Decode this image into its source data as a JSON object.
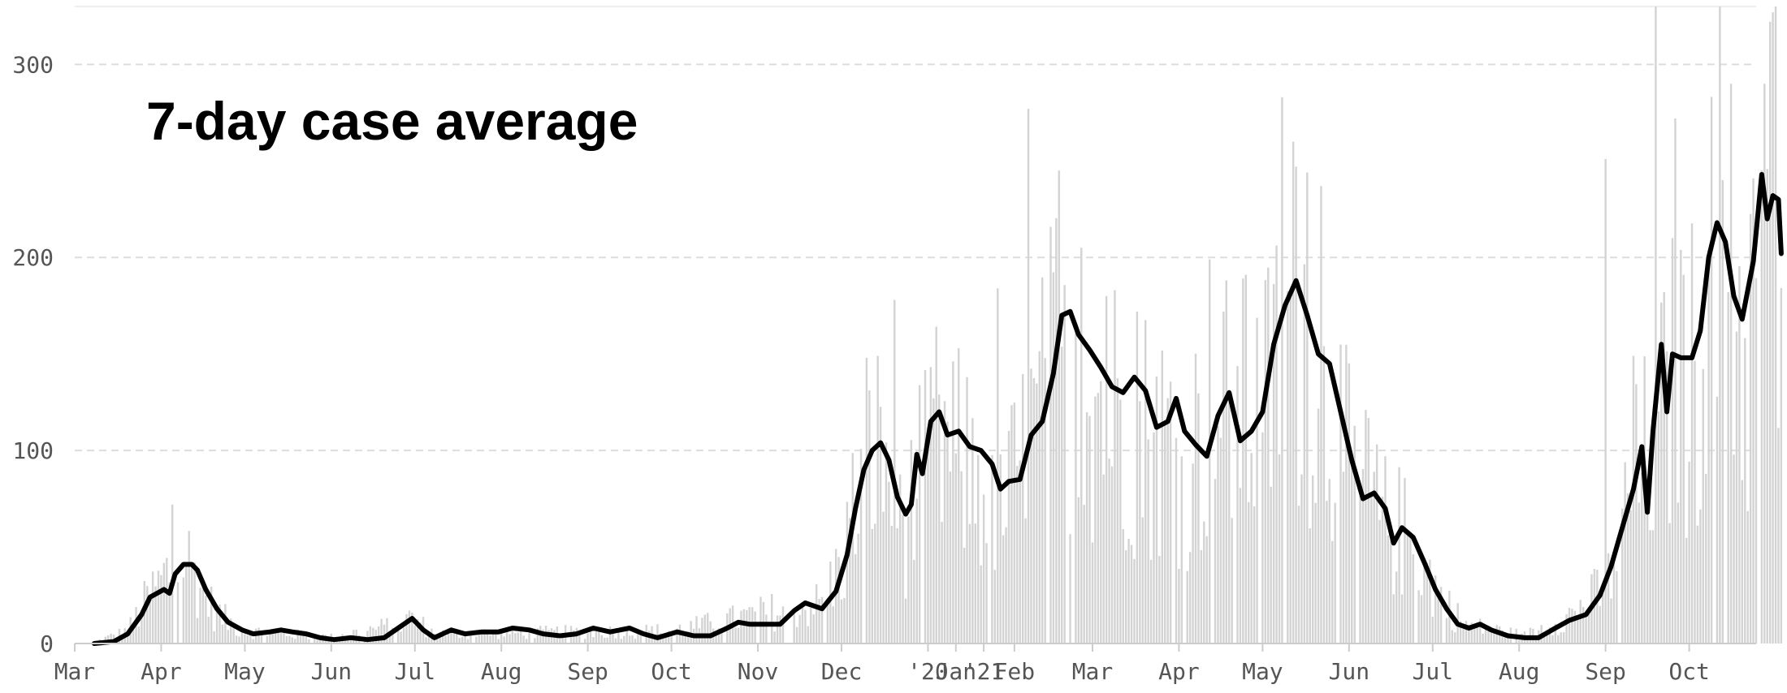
{
  "chart_data": {
    "type": "bar",
    "title": "7-day case average",
    "grid": true,
    "ylim": [
      0,
      330
    ],
    "y_ticks": [
      0,
      100,
      200,
      300
    ],
    "y_tick_labels": [
      "0",
      "100",
      "200",
      "300"
    ],
    "x_range": [
      "2020-03-01",
      "2021-10-25"
    ],
    "x_tick_labels": [
      {
        "date": "2020-03-01",
        "label": "Mar"
      },
      {
        "date": "2020-04-01",
        "label": "Apr"
      },
      {
        "date": "2020-05-01",
        "label": "May"
      },
      {
        "date": "2020-06-01",
        "label": "Jun"
      },
      {
        "date": "2020-07-01",
        "label": "Jul"
      },
      {
        "date": "2020-08-01",
        "label": "Aug"
      },
      {
        "date": "2020-09-01",
        "label": "Sep"
      },
      {
        "date": "2020-10-01",
        "label": "Oct"
      },
      {
        "date": "2020-11-01",
        "label": "Nov"
      },
      {
        "date": "2020-12-01",
        "label": "Dec"
      },
      {
        "date": "2021-01-01",
        "label": "'20"
      },
      {
        "date": "2021-01-11",
        "label": "Jan"
      },
      {
        "date": "2021-01-21",
        "label": "'21"
      },
      {
        "date": "2021-02-01",
        "label": "Feb"
      },
      {
        "date": "2021-03-01",
        "label": "Mar"
      },
      {
        "date": "2021-04-01",
        "label": "Apr"
      },
      {
        "date": "2021-05-01",
        "label": "May"
      },
      {
        "date": "2021-06-01",
        "label": "Jun"
      },
      {
        "date": "2021-07-01",
        "label": "Jul"
      },
      {
        "date": "2021-08-01",
        "label": "Aug"
      },
      {
        "date": "2021-09-01",
        "label": "Sep"
      },
      {
        "date": "2021-10-01",
        "label": "Oct"
      }
    ],
    "colors": {
      "bars": "#d3d3d3",
      "line": "#000000",
      "grid": "#dddddd",
      "axis": "#cccccc",
      "tick_text": "#555555"
    },
    "series": [
      {
        "type": "line",
        "points": [
          [
            "2020-03-08",
            0
          ],
          [
            "2020-03-15",
            1
          ],
          [
            "2020-03-20",
            5
          ],
          [
            "2020-03-25",
            15
          ],
          [
            "2020-03-28",
            24
          ],
          [
            "2020-04-02",
            28
          ],
          [
            "2020-04-04",
            26
          ],
          [
            "2020-04-06",
            36
          ],
          [
            "2020-04-09",
            41
          ],
          [
            "2020-04-12",
            41
          ],
          [
            "2020-04-14",
            38
          ],
          [
            "2020-04-17",
            28
          ],
          [
            "2020-04-21",
            18
          ],
          [
            "2020-04-25",
            11
          ],
          [
            "2020-04-30",
            7
          ],
          [
            "2020-05-04",
            5
          ],
          [
            "2020-05-10",
            6
          ],
          [
            "2020-05-14",
            7
          ],
          [
            "2020-05-18",
            6
          ],
          [
            "2020-05-23",
            5
          ],
          [
            "2020-05-28",
            3
          ],
          [
            "2020-06-02",
            2
          ],
          [
            "2020-06-08",
            3
          ],
          [
            "2020-06-14",
            2
          ],
          [
            "2020-06-20",
            3
          ],
          [
            "2020-06-25",
            8
          ],
          [
            "2020-06-30",
            13
          ],
          [
            "2020-07-04",
            7
          ],
          [
            "2020-07-08",
            3
          ],
          [
            "2020-07-14",
            7
          ],
          [
            "2020-07-19",
            5
          ],
          [
            "2020-07-25",
            6
          ],
          [
            "2020-07-31",
            6
          ],
          [
            "2020-08-05",
            8
          ],
          [
            "2020-08-11",
            7
          ],
          [
            "2020-08-16",
            5
          ],
          [
            "2020-08-22",
            4
          ],
          [
            "2020-08-28",
            5
          ],
          [
            "2020-09-03",
            8
          ],
          [
            "2020-09-09",
            6
          ],
          [
            "2020-09-16",
            8
          ],
          [
            "2020-09-21",
            5
          ],
          [
            "2020-09-26",
            3
          ],
          [
            "2020-10-03",
            6
          ],
          [
            "2020-10-09",
            4
          ],
          [
            "2020-10-15",
            4
          ],
          [
            "2020-10-21",
            8
          ],
          [
            "2020-10-25",
            11
          ],
          [
            "2020-10-29",
            10
          ],
          [
            "2020-11-03",
            10
          ],
          [
            "2020-11-09",
            10
          ],
          [
            "2020-11-14",
            17
          ],
          [
            "2020-11-18",
            21
          ],
          [
            "2020-11-24",
            18
          ],
          [
            "2020-11-29",
            27
          ],
          [
            "2020-12-03",
            46
          ],
          [
            "2020-12-06",
            70
          ],
          [
            "2020-12-09",
            90
          ],
          [
            "2020-12-12",
            100
          ],
          [
            "2020-12-15",
            104
          ],
          [
            "2020-12-18",
            95
          ],
          [
            "2020-12-21",
            76
          ],
          [
            "2020-12-24",
            67
          ],
          [
            "2020-12-26",
            72
          ],
          [
            "2020-12-28",
            98
          ],
          [
            "2020-12-30",
            88
          ],
          [
            "2021-01-02",
            115
          ],
          [
            "2021-01-05",
            120
          ],
          [
            "2021-01-08",
            108
          ],
          [
            "2021-01-12",
            110
          ],
          [
            "2021-01-16",
            102
          ],
          [
            "2021-01-20",
            100
          ],
          [
            "2021-01-24",
            93
          ],
          [
            "2021-01-27",
            80
          ],
          [
            "2021-01-30",
            84
          ],
          [
            "2021-02-03",
            85
          ],
          [
            "2021-02-07",
            108
          ],
          [
            "2021-02-11",
            115
          ],
          [
            "2021-02-15",
            140
          ],
          [
            "2021-02-18",
            170
          ],
          [
            "2021-02-21",
            172
          ],
          [
            "2021-02-24",
            160
          ],
          [
            "2021-02-28",
            152
          ],
          [
            "2021-03-04",
            143
          ],
          [
            "2021-03-08",
            133
          ],
          [
            "2021-03-12",
            130
          ],
          [
            "2021-03-16",
            138
          ],
          [
            "2021-03-20",
            131
          ],
          [
            "2021-03-24",
            112
          ],
          [
            "2021-03-28",
            115
          ],
          [
            "2021-03-31",
            127
          ],
          [
            "2021-04-03",
            110
          ],
          [
            "2021-04-07",
            103
          ],
          [
            "2021-04-11",
            97
          ],
          [
            "2021-04-15",
            118
          ],
          [
            "2021-04-19",
            130
          ],
          [
            "2021-04-23",
            105
          ],
          [
            "2021-04-27",
            110
          ],
          [
            "2021-05-01",
            120
          ],
          [
            "2021-05-05",
            155
          ],
          [
            "2021-05-09",
            175
          ],
          [
            "2021-05-13",
            188
          ],
          [
            "2021-05-17",
            170
          ],
          [
            "2021-05-21",
            150
          ],
          [
            "2021-05-25",
            145
          ],
          [
            "2021-05-29",
            120
          ],
          [
            "2021-06-02",
            95
          ],
          [
            "2021-06-06",
            75
          ],
          [
            "2021-06-10",
            78
          ],
          [
            "2021-06-14",
            70
          ],
          [
            "2021-06-17",
            52
          ],
          [
            "2021-06-20",
            60
          ],
          [
            "2021-06-24",
            55
          ],
          [
            "2021-06-28",
            42
          ],
          [
            "2021-07-02",
            28
          ],
          [
            "2021-07-06",
            18
          ],
          [
            "2021-07-10",
            10
          ],
          [
            "2021-07-14",
            8
          ],
          [
            "2021-07-18",
            10
          ],
          [
            "2021-07-22",
            7
          ],
          [
            "2021-07-28",
            4
          ],
          [
            "2021-08-03",
            3
          ],
          [
            "2021-08-08",
            3
          ],
          [
            "2021-08-14",
            8
          ],
          [
            "2021-08-19",
            12
          ],
          [
            "2021-08-25",
            15
          ],
          [
            "2021-08-30",
            25
          ],
          [
            "2021-09-03",
            40
          ],
          [
            "2021-09-07",
            60
          ],
          [
            "2021-09-11",
            80
          ],
          [
            "2021-09-14",
            102
          ],
          [
            "2021-09-16",
            68
          ],
          [
            "2021-09-18",
            110
          ],
          [
            "2021-09-21",
            155
          ],
          [
            "2021-09-23",
            120
          ],
          [
            "2021-09-25",
            150
          ],
          [
            "2021-09-28",
            148
          ],
          [
            "2021-10-02",
            148
          ],
          [
            "2021-10-05",
            162
          ],
          [
            "2021-10-08",
            200
          ],
          [
            "2021-10-11",
            218
          ],
          [
            "2021-10-14",
            208
          ],
          [
            "2021-10-17",
            180
          ],
          [
            "2021-10-20",
            168
          ],
          [
            "2021-10-24",
            198
          ],
          [
            "2021-10-27",
            243
          ],
          [
            "2021-10-29",
            220
          ],
          [
            "2021-10-31",
            232
          ],
          [
            "2021-11-02",
            230
          ],
          [
            "2021-11-03",
            202
          ]
        ]
      },
      {
        "type": "bar",
        "envelope": [
          [
            "2020-03-08",
            1
          ],
          [
            "2020-03-20",
            8
          ],
          [
            "2020-03-28",
            30
          ],
          [
            "2020-04-04",
            45
          ],
          [
            "2020-04-08",
            60
          ],
          [
            "2020-04-12",
            48
          ],
          [
            "2020-04-20",
            20
          ],
          [
            "2020-04-30",
            8
          ],
          [
            "2020-06-01",
            4
          ],
          [
            "2020-06-25",
            12
          ],
          [
            "2020-06-30",
            16
          ],
          [
            "2020-07-08",
            6
          ],
          [
            "2020-10-01",
            8
          ],
          [
            "2020-10-20",
            14
          ],
          [
            "2020-11-12",
            22
          ],
          [
            "2020-11-24",
            25
          ],
          [
            "2020-12-01",
            50
          ],
          [
            "2020-12-07",
            95
          ],
          [
            "2020-12-12",
            125
          ],
          [
            "2020-12-18",
            110
          ],
          [
            "2020-12-24",
            75
          ],
          [
            "2020-12-29",
            100
          ],
          [
            "2021-01-04",
            125
          ],
          [
            "2021-01-12",
            115
          ],
          [
            "2021-01-22",
            100
          ],
          [
            "2021-01-28",
            85
          ],
          [
            "2021-02-08",
            130
          ],
          [
            "2021-02-16",
            175
          ],
          [
            "2021-02-22",
            190
          ],
          [
            "2021-03-01",
            160
          ],
          [
            "2021-03-12",
            145
          ],
          [
            "2021-03-24",
            130
          ],
          [
            "2021-04-04",
            120
          ],
          [
            "2021-04-17",
            145
          ],
          [
            "2021-05-01",
            140
          ],
          [
            "2021-05-09",
            195
          ],
          [
            "2021-05-14",
            210
          ],
          [
            "2021-05-22",
            160
          ],
          [
            "2021-06-01",
            110
          ],
          [
            "2021-06-10",
            85
          ],
          [
            "2021-06-22",
            65
          ],
          [
            "2021-07-02",
            35
          ],
          [
            "2021-07-12",
            12
          ],
          [
            "2021-08-03",
            5
          ],
          [
            "2021-08-20",
            18
          ],
          [
            "2021-09-01",
            35
          ],
          [
            "2021-09-10",
            95
          ],
          [
            "2021-09-18",
            125
          ],
          [
            "2021-09-25",
            160
          ],
          [
            "2021-10-04",
            170
          ],
          [
            "2021-10-10",
            235
          ],
          [
            "2021-10-17",
            200
          ],
          [
            "2021-10-22",
            180
          ],
          [
            "2021-10-28",
            270
          ],
          [
            "2021-11-03",
            220
          ]
        ],
        "peaks": [
          [
            "2020-04-05",
            72
          ],
          [
            "2020-12-10",
            148
          ],
          [
            "2020-12-20",
            178
          ],
          [
            "2021-01-03",
            127
          ],
          [
            "2021-01-15",
            138
          ],
          [
            "2021-01-26",
            184
          ],
          [
            "2021-02-06",
            277
          ],
          [
            "2021-02-17",
            245
          ],
          [
            "2021-02-25",
            205
          ],
          [
            "2021-03-06",
            180
          ],
          [
            "2021-03-17",
            172
          ],
          [
            "2021-04-12",
            199
          ],
          [
            "2021-04-25",
            191
          ],
          [
            "2021-05-08",
            283
          ],
          [
            "2021-05-13",
            247
          ],
          [
            "2021-05-17",
            244
          ],
          [
            "2021-05-22",
            237
          ],
          [
            "2021-06-07",
            121
          ],
          [
            "2021-06-14",
            97
          ],
          [
            "2021-09-01",
            251
          ],
          [
            "2021-09-11",
            149
          ],
          [
            "2021-09-19",
            330
          ],
          [
            "2021-09-26",
            272
          ],
          [
            "2021-10-08",
            200
          ],
          [
            "2021-10-12",
            330
          ],
          [
            "2021-10-16",
            290
          ],
          [
            "2021-10-24",
            241
          ],
          [
            "2021-10-28",
            290
          ],
          [
            "2021-10-31",
            327
          ],
          [
            "2021-11-01",
            330
          ]
        ]
      }
    ]
  }
}
